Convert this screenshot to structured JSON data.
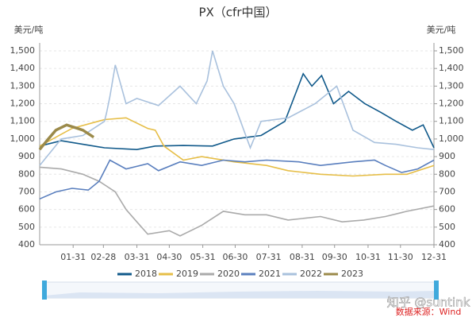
{
  "chart_data": {
    "type": "line",
    "title": "PX（cfr中国）",
    "y_label": "美元/吨",
    "y2_label": "美元/吨",
    "xlim": [
      0,
      365
    ],
    "xticks": [
      {
        "value": 31,
        "label": "01-31"
      },
      {
        "value": 59,
        "label": "02-28"
      },
      {
        "value": 90,
        "label": "03-31"
      },
      {
        "value": 120,
        "label": "04-30"
      },
      {
        "value": 151,
        "label": "05-31"
      },
      {
        "value": 181,
        "label": "06-30"
      },
      {
        "value": 212,
        "label": "07-31"
      },
      {
        "value": 243,
        "label": "08-31"
      },
      {
        "value": 273,
        "label": "09-30"
      },
      {
        "value": 304,
        "label": "10-31"
      },
      {
        "value": 334,
        "label": "11-30"
      },
      {
        "value": 365,
        "label": "12-31"
      }
    ],
    "ylim": [
      400,
      1500
    ],
    "yticks": [
      400,
      500,
      600,
      700,
      800,
      900,
      {
        "value": 1000,
        "label": "1,000"
      },
      {
        "value": 1100,
        "label": "1,100"
      },
      {
        "value": 1200,
        "label": "1,200"
      },
      {
        "value": 1300,
        "label": "1,300"
      },
      {
        "value": 1400,
        "label": "1,400"
      },
      {
        "value": 1500,
        "label": "1,500"
      }
    ],
    "y2lim": [
      400,
      1500
    ],
    "y2ticks": [
      400,
      500,
      600,
      700,
      800,
      900,
      {
        "value": 1000,
        "label": "1,000"
      },
      {
        "value": 1100,
        "label": "1,100"
      },
      {
        "value": 1200,
        "label": "1,200"
      },
      {
        "value": 1300,
        "label": "1,300"
      },
      {
        "value": 1400,
        "label": "1,400"
      },
      {
        "value": 1500,
        "label": "1,500"
      }
    ],
    "grid": true,
    "series": [
      {
        "name": "2018",
        "color": "#10598a",
        "x": [
          0,
          20,
          40,
          60,
          90,
          107,
          133,
          160,
          180,
          205,
          227,
          244,
          252,
          261,
          272,
          286,
          301,
          316,
          330,
          345,
          355,
          365
        ],
        "values": [
          960,
          990,
          970,
          950,
          940,
          960,
          963,
          960,
          1000,
          1020,
          1100,
          1370,
          1300,
          1360,
          1200,
          1270,
          1200,
          1150,
          1100,
          1050,
          1080,
          950
        ]
      },
      {
        "name": "2019",
        "color": "#e6be47",
        "x": [
          0,
          30,
          60,
          80,
          100,
          107,
          115,
          133,
          150,
          180,
          210,
          230,
          260,
          290,
          320,
          340,
          365
        ],
        "values": [
          960,
          1060,
          1110,
          1120,
          1060,
          1050,
          960,
          880,
          900,
          870,
          850,
          820,
          800,
          790,
          800,
          800,
          850
        ]
      },
      {
        "name": "2020",
        "color": "#aaaaaa",
        "x": [
          0,
          20,
          40,
          55,
          70,
          80,
          90,
          100,
          120,
          130,
          150,
          170,
          190,
          210,
          230,
          260,
          280,
          300,
          320,
          340,
          365
        ],
        "values": [
          840,
          830,
          800,
          760,
          700,
          600,
          530,
          460,
          480,
          450,
          510,
          590,
          570,
          570,
          540,
          560,
          530,
          540,
          560,
          590,
          620
        ]
      },
      {
        "name": "2021",
        "color": "#5a7fbe",
        "x": [
          0,
          15,
          30,
          45,
          55,
          65,
          80,
          100,
          110,
          130,
          150,
          170,
          190,
          210,
          240,
          260,
          290,
          310,
          320,
          335,
          350,
          365
        ],
        "values": [
          660,
          700,
          720,
          710,
          760,
          880,
          830,
          860,
          820,
          870,
          850,
          880,
          870,
          880,
          870,
          850,
          870,
          880,
          850,
          810,
          830,
          880
        ]
      },
      {
        "name": "2022",
        "color": "#a9c1dd",
        "x": [
          0,
          20,
          40,
          60,
          62,
          65,
          70,
          80,
          90,
          110,
          130,
          145,
          155,
          160,
          170,
          180,
          195,
          205,
          230,
          255,
          275,
          290,
          310,
          330,
          350,
          365
        ],
        "values": [
          850,
          1000,
          1020,
          1100,
          1150,
          1240,
          1420,
          1200,
          1230,
          1190,
          1300,
          1200,
          1330,
          1500,
          1300,
          1200,
          950,
          1100,
          1120,
          1200,
          1300,
          1050,
          980,
          970,
          950,
          940
        ]
      },
      {
        "name": "2023",
        "color": "#9b8a4a",
        "x": [
          0,
          8,
          15,
          25,
          35,
          40,
          50
        ],
        "values": [
          940,
          1000,
          1050,
          1080,
          1060,
          1050,
          1010
        ]
      }
    ]
  },
  "watermark": "知乎 @suntink",
  "source": "数据来源：Wind"
}
